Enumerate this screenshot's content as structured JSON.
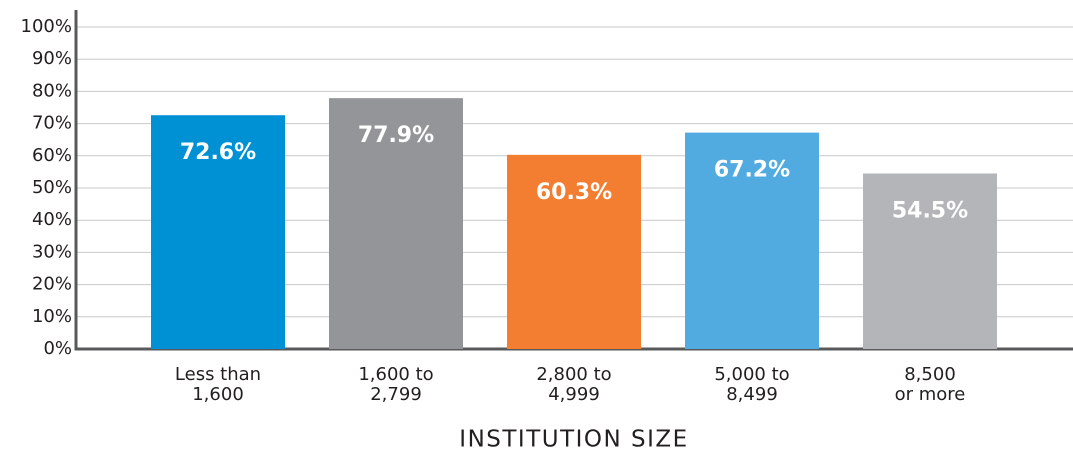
{
  "chart_data": {
    "type": "bar",
    "x_label": "INSTITUTION SIZE",
    "categories": [
      [
        "Less than",
        "1,600"
      ],
      [
        "1,600 to",
        "2,799"
      ],
      [
        "2,800 to",
        "4,999"
      ],
      [
        "5,000 to",
        "8,499"
      ],
      [
        "8,500",
        "or more"
      ]
    ],
    "values": [
      72.6,
      77.9,
      60.3,
      67.2,
      54.5
    ],
    "value_labels": [
      "72.6%",
      "77.9%",
      "60.3%",
      "67.2%",
      "54.5%"
    ],
    "colors": [
      "#0090d4",
      "#939598",
      "#f37e31",
      "#51abe0",
      "#b3b5b8"
    ],
    "ylim": [
      0,
      100
    ],
    "yticks": [
      {
        "value": 0,
        "label": "0%"
      },
      {
        "value": 10,
        "label": "10%"
      },
      {
        "value": 20,
        "label": "20%"
      },
      {
        "value": 30,
        "label": "30%"
      },
      {
        "value": 40,
        "label": "40%"
      },
      {
        "value": 50,
        "label": "50%"
      },
      {
        "value": 60,
        "label": "60%"
      },
      {
        "value": 70,
        "label": "70%"
      },
      {
        "value": 80,
        "label": "80%"
      },
      {
        "value": 90,
        "label": "90%"
      },
      {
        "value": 100,
        "label": "100%"
      }
    ],
    "grid": true
  }
}
